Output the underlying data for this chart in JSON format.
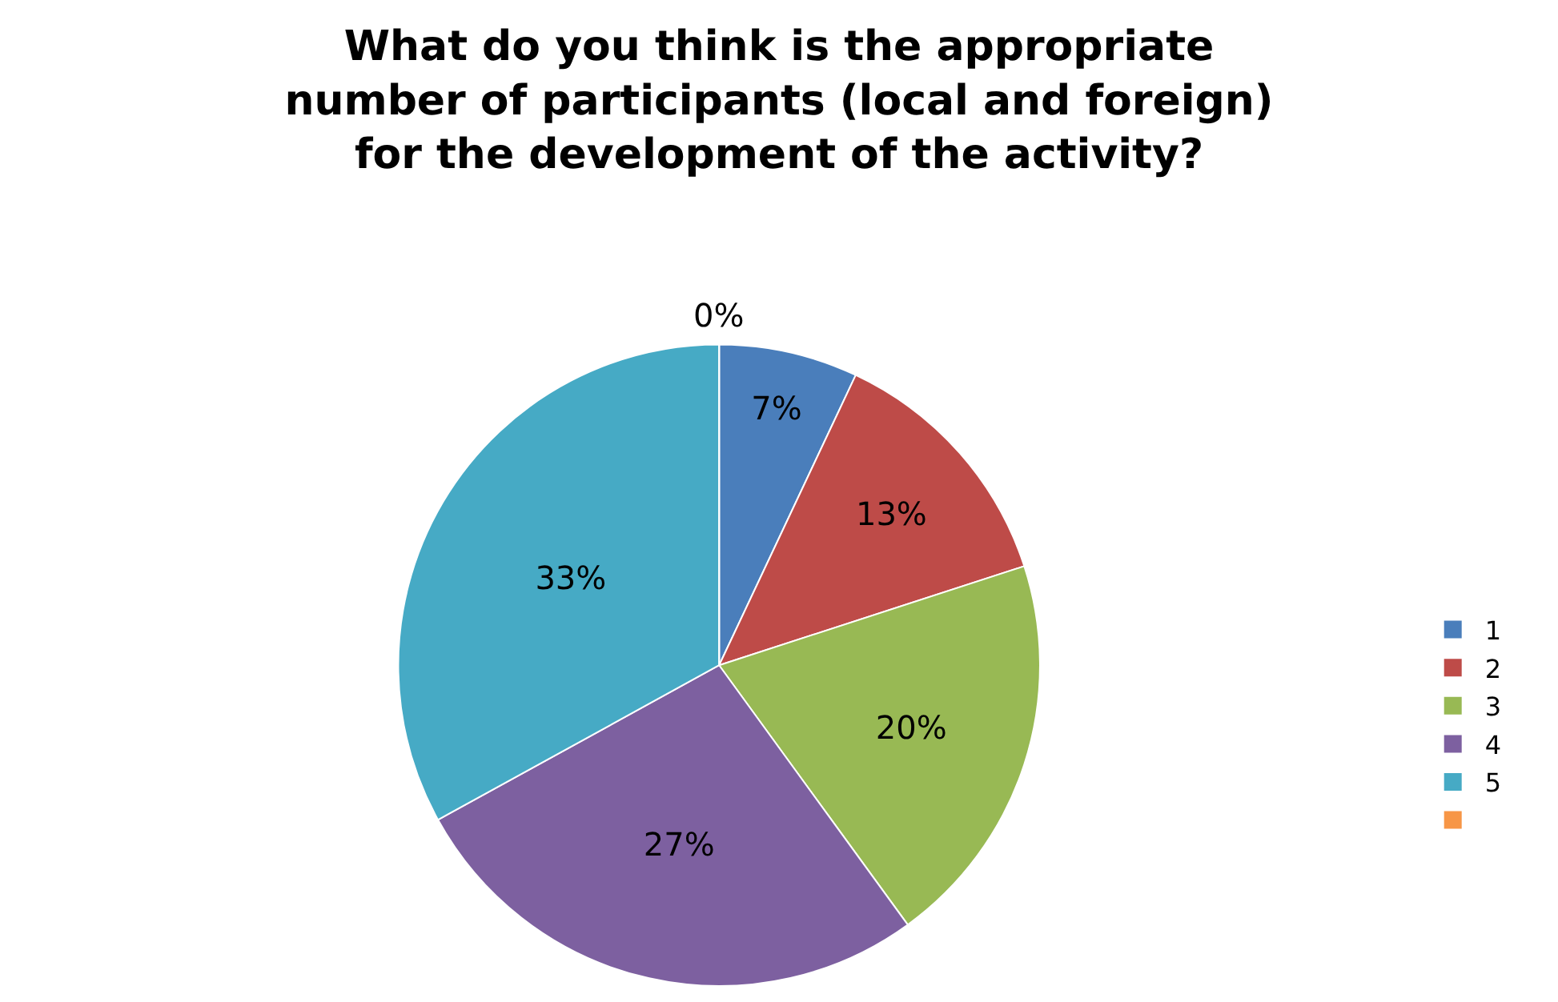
{
  "chart_data": {
    "type": "pie",
    "title": "What do you think is the appropriate\nnumber of participants (local and foreign)\nfor the development of the activity?",
    "categories": [
      "1",
      "2",
      "3",
      "4",
      "5",
      null
    ],
    "values": [
      7,
      13,
      20,
      27,
      33,
      0
    ],
    "colors": [
      "#4a7ebb",
      "#be4b48",
      "#98b954",
      "#7d60a0",
      "#46aac5",
      "#f79646"
    ],
    "value_labels": [
      "7%",
      "13%",
      "20%",
      "27%",
      "33%",
      "0%"
    ],
    "legend": "right"
  }
}
